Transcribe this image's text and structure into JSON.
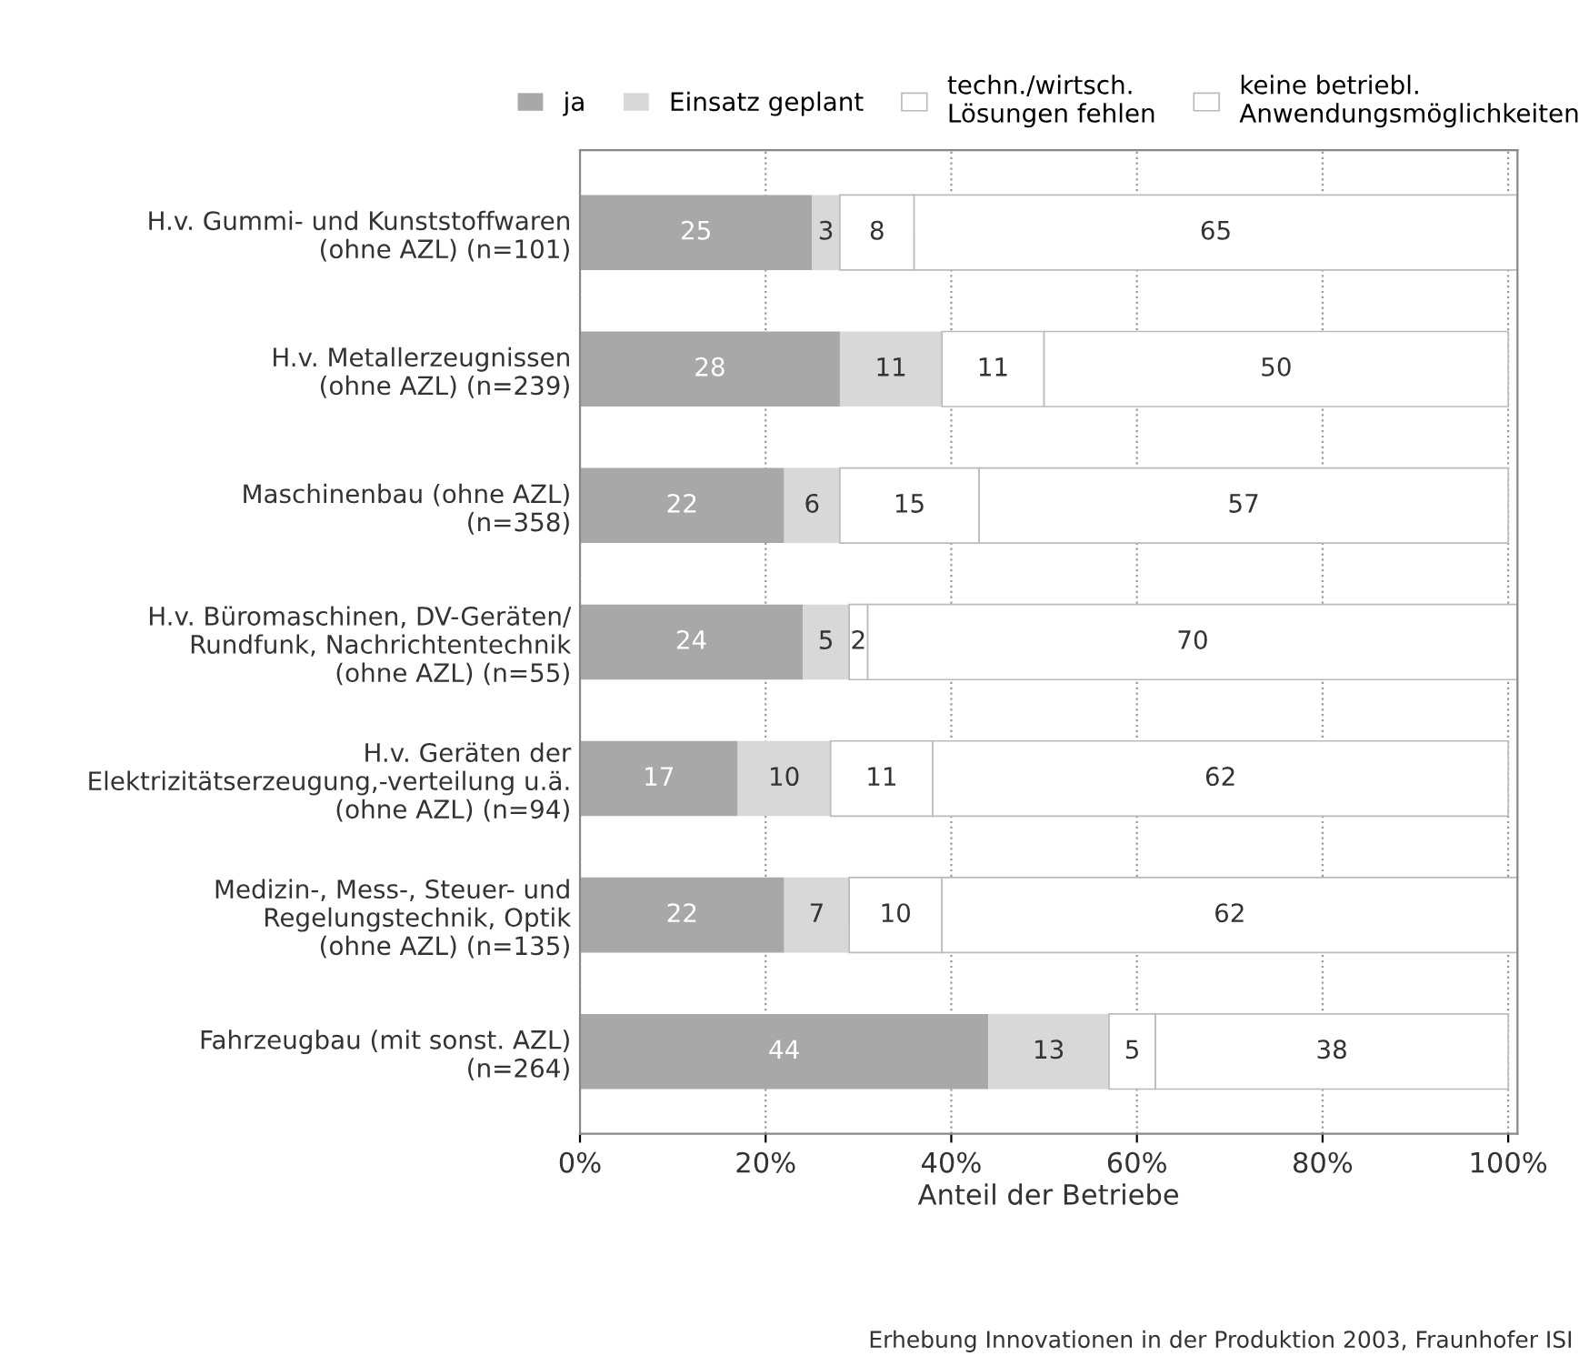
{
  "chart_data": {
    "type": "bar",
    "orientation": "horizontal",
    "stacked": true,
    "categories": [
      "H.v. Gummi- und Kunststoffwaren\n(ohne AZL) (n=101)",
      "H.v. Metallerzeugnissen\n(ohne AZL) (n=239)",
      "Maschinenbau (ohne AZL)\n(n=358)",
      "H.v. Büromaschinen, DV-Geräten/\nRundfunk, Nachrichtentechnik\n(ohne AZL) (n=55)",
      "H.v. Geräten der\nElektrizitätserzeugung,-verteilung u.ä.\n(ohne AZL) (n=94)",
      "Medizin-, Mess-, Steuer- und\nRegelungstechnik, Optik\n(ohne AZL) (n=135)",
      "Fahrzeugbau (mit sonst. AZL)\n(n=264)"
    ],
    "series": [
      {
        "name": "ja",
        "color": "#a8a8a8",
        "values": [
          25,
          28,
          22,
          24,
          17,
          22,
          44
        ]
      },
      {
        "name": "Einsatz geplant",
        "color": "#d8d8d8",
        "values": [
          3,
          11,
          6,
          5,
          10,
          7,
          13
        ]
      },
      {
        "name": "techn./wirtsch.\nLösungen fehlen",
        "color": "#ffffff",
        "values": [
          8,
          11,
          15,
          2,
          11,
          10,
          5
        ]
      },
      {
        "name": "keine betriebl.\nAnwendungsmöglichkeiten",
        "color": "#ffffff",
        "values": [
          65,
          50,
          57,
          70,
          62,
          62,
          38
        ]
      }
    ],
    "xlabel": "Anteil der Betriebe",
    "xlim": [
      0,
      101
    ],
    "xticks": [
      {
        "value": 0,
        "label": "0%"
      },
      {
        "value": 20,
        "label": "20%"
      },
      {
        "value": 40,
        "label": "40%"
      },
      {
        "value": 60,
        "label": "60%"
      },
      {
        "value": 80,
        "label": "80%"
      },
      {
        "value": 100,
        "label": "100%"
      }
    ],
    "grid": "x",
    "legend": "top",
    "data_labels": true,
    "annotations": [
      "Erhebung Innovationen in der Produktion 2003, Fraunhofer ISI"
    ]
  }
}
